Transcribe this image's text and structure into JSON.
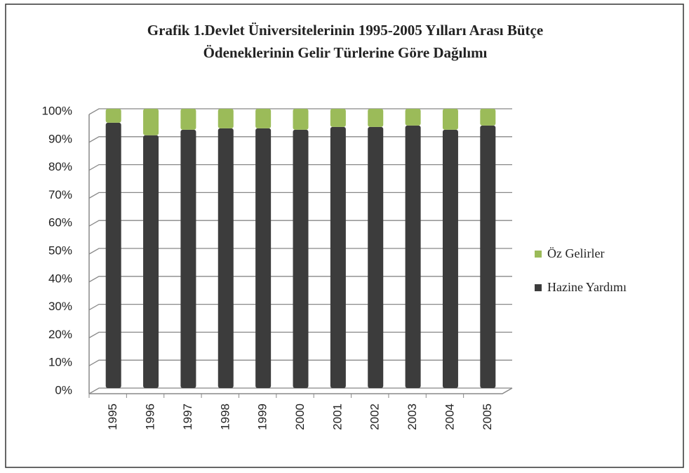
{
  "chart_data": {
    "type": "bar",
    "stacked": true,
    "title": [
      "Grafik 1.Devlet Üniversitelerinin 1995-2005 Yılları Arası Bütçe",
      "Ödeneklerinin Gelir Türlerine Göre  Dağılımı"
    ],
    "categories": [
      "1995",
      "1996",
      "1997",
      "1998",
      "1999",
      "2000",
      "2001",
      "2002",
      "2003",
      "2004",
      "2005"
    ],
    "series": [
      {
        "name": "Hazine Yardımı",
        "color": "#3c3c3c",
        "values": [
          95,
          90.5,
          92.5,
          93,
          93,
          92.5,
          93.5,
          93.5,
          94,
          92.5,
          94
        ]
      },
      {
        "name": "Öz Gelirler",
        "color": "#9bbb59",
        "values": [
          5,
          9.5,
          7.5,
          7,
          7,
          7.5,
          6.5,
          6.5,
          6,
          7.5,
          6
        ]
      }
    ],
    "ylim": [
      0,
      100
    ],
    "yticks": [
      {
        "value": 0,
        "label": "0%"
      },
      {
        "value": 10,
        "label": "10%"
      },
      {
        "value": 20,
        "label": "20%"
      },
      {
        "value": 30,
        "label": "30%"
      },
      {
        "value": 40,
        "label": "40%"
      },
      {
        "value": 50,
        "label": "50%"
      },
      {
        "value": 60,
        "label": "60%"
      },
      {
        "value": 70,
        "label": "70%"
      },
      {
        "value": 80,
        "label": "80%"
      },
      {
        "value": 90,
        "label": "90%"
      },
      {
        "value": 100,
        "label": "100%"
      }
    ],
    "grid": true,
    "legend": "right"
  }
}
